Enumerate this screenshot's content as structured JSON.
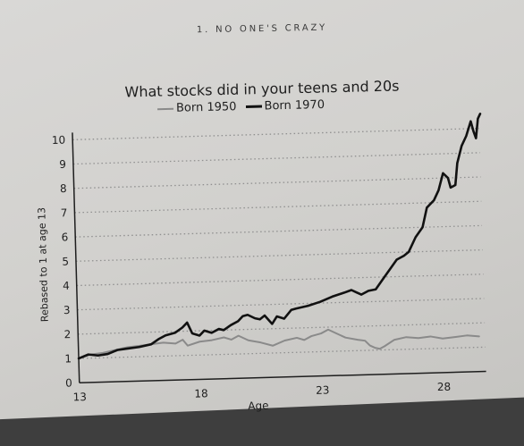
{
  "page": {
    "running_head": "1. NO ONE'S CRAZY"
  },
  "chart_data": {
    "type": "line",
    "title": "What stocks did in your teens and 20s",
    "xlabel": "Age",
    "ylabel": "Rebased to 1 at age 13",
    "xlim": [
      13,
      29.6
    ],
    "ylim": [
      0,
      10
    ],
    "x_ticks": [
      13,
      18,
      23,
      28
    ],
    "y_ticks": [
      0,
      1,
      2,
      3,
      4,
      5,
      6,
      7,
      8,
      9,
      10
    ],
    "grid": "horizontal dotted",
    "legend_position": "top",
    "colors": {
      "Born 1950": "#8a8a8a",
      "Born 1970": "#111111",
      "grid": "#8f8f8f",
      "axis": "#1e1e1e"
    },
    "series": [
      {
        "name": "Born 1950",
        "points": [
          [
            13.0,
            1.0
          ],
          [
            13.5,
            1.15
          ],
          [
            14.0,
            1.2
          ],
          [
            14.5,
            1.3
          ],
          [
            15.0,
            1.4
          ],
          [
            15.5,
            1.45
          ],
          [
            16.0,
            1.5
          ],
          [
            16.5,
            1.55
          ],
          [
            17.0,
            1.5
          ],
          [
            17.3,
            1.65
          ],
          [
            17.5,
            1.4
          ],
          [
            18.0,
            1.55
          ],
          [
            18.5,
            1.6
          ],
          [
            19.0,
            1.7
          ],
          [
            19.3,
            1.6
          ],
          [
            19.6,
            1.75
          ],
          [
            20.0,
            1.55
          ],
          [
            20.5,
            1.45
          ],
          [
            21.0,
            1.3
          ],
          [
            21.5,
            1.5
          ],
          [
            22.0,
            1.6
          ],
          [
            22.3,
            1.5
          ],
          [
            22.6,
            1.65
          ],
          [
            23.0,
            1.75
          ],
          [
            23.3,
            1.9
          ],
          [
            23.6,
            1.75
          ],
          [
            24.0,
            1.55
          ],
          [
            24.5,
            1.45
          ],
          [
            24.8,
            1.4
          ],
          [
            25.0,
            1.2
          ],
          [
            25.2,
            1.1
          ],
          [
            25.4,
            1.05
          ],
          [
            25.6,
            1.15
          ],
          [
            26.0,
            1.4
          ],
          [
            26.5,
            1.5
          ],
          [
            27.0,
            1.45
          ],
          [
            27.5,
            1.5
          ],
          [
            28.0,
            1.4
          ],
          [
            28.5,
            1.45
          ],
          [
            29.0,
            1.5
          ],
          [
            29.5,
            1.45
          ]
        ]
      },
      {
        "name": "Born 1970",
        "points": [
          [
            13.0,
            1.0
          ],
          [
            13.4,
            1.15
          ],
          [
            13.8,
            1.1
          ],
          [
            14.2,
            1.15
          ],
          [
            14.6,
            1.3
          ],
          [
            15.0,
            1.35
          ],
          [
            15.5,
            1.4
          ],
          [
            16.0,
            1.5
          ],
          [
            16.3,
            1.7
          ],
          [
            16.6,
            1.85
          ],
          [
            17.0,
            1.95
          ],
          [
            17.3,
            2.15
          ],
          [
            17.5,
            2.35
          ],
          [
            17.7,
            1.9
          ],
          [
            18.0,
            1.8
          ],
          [
            18.2,
            2.0
          ],
          [
            18.5,
            1.9
          ],
          [
            18.8,
            2.05
          ],
          [
            19.0,
            2.0
          ],
          [
            19.3,
            2.2
          ],
          [
            19.6,
            2.35
          ],
          [
            19.8,
            2.55
          ],
          [
            20.0,
            2.6
          ],
          [
            20.3,
            2.45
          ],
          [
            20.5,
            2.4
          ],
          [
            20.7,
            2.55
          ],
          [
            21.0,
            2.2
          ],
          [
            21.2,
            2.5
          ],
          [
            21.5,
            2.4
          ],
          [
            21.8,
            2.75
          ],
          [
            22.0,
            2.8
          ],
          [
            22.5,
            2.9
          ],
          [
            23.0,
            3.05
          ],
          [
            23.5,
            3.25
          ],
          [
            24.0,
            3.4
          ],
          [
            24.3,
            3.5
          ],
          [
            24.5,
            3.4
          ],
          [
            24.7,
            3.3
          ],
          [
            25.0,
            3.45
          ],
          [
            25.3,
            3.5
          ],
          [
            25.6,
            3.9
          ],
          [
            25.9,
            4.3
          ],
          [
            26.2,
            4.7
          ],
          [
            26.5,
            4.85
          ],
          [
            26.7,
            5.0
          ],
          [
            27.0,
            5.6
          ],
          [
            27.3,
            6.0
          ],
          [
            27.5,
            6.8
          ],
          [
            27.8,
            7.1
          ],
          [
            28.0,
            7.5
          ],
          [
            28.2,
            8.2
          ],
          [
            28.4,
            8.0
          ],
          [
            28.5,
            7.6
          ],
          [
            28.7,
            7.7
          ],
          [
            28.8,
            8.6
          ],
          [
            29.0,
            9.3
          ],
          [
            29.2,
            9.7
          ],
          [
            29.4,
            10.3
          ],
          [
            29.5,
            9.9
          ],
          [
            29.6,
            9.6
          ],
          [
            29.7,
            10.4
          ],
          [
            29.8,
            10.6
          ]
        ]
      }
    ]
  }
}
